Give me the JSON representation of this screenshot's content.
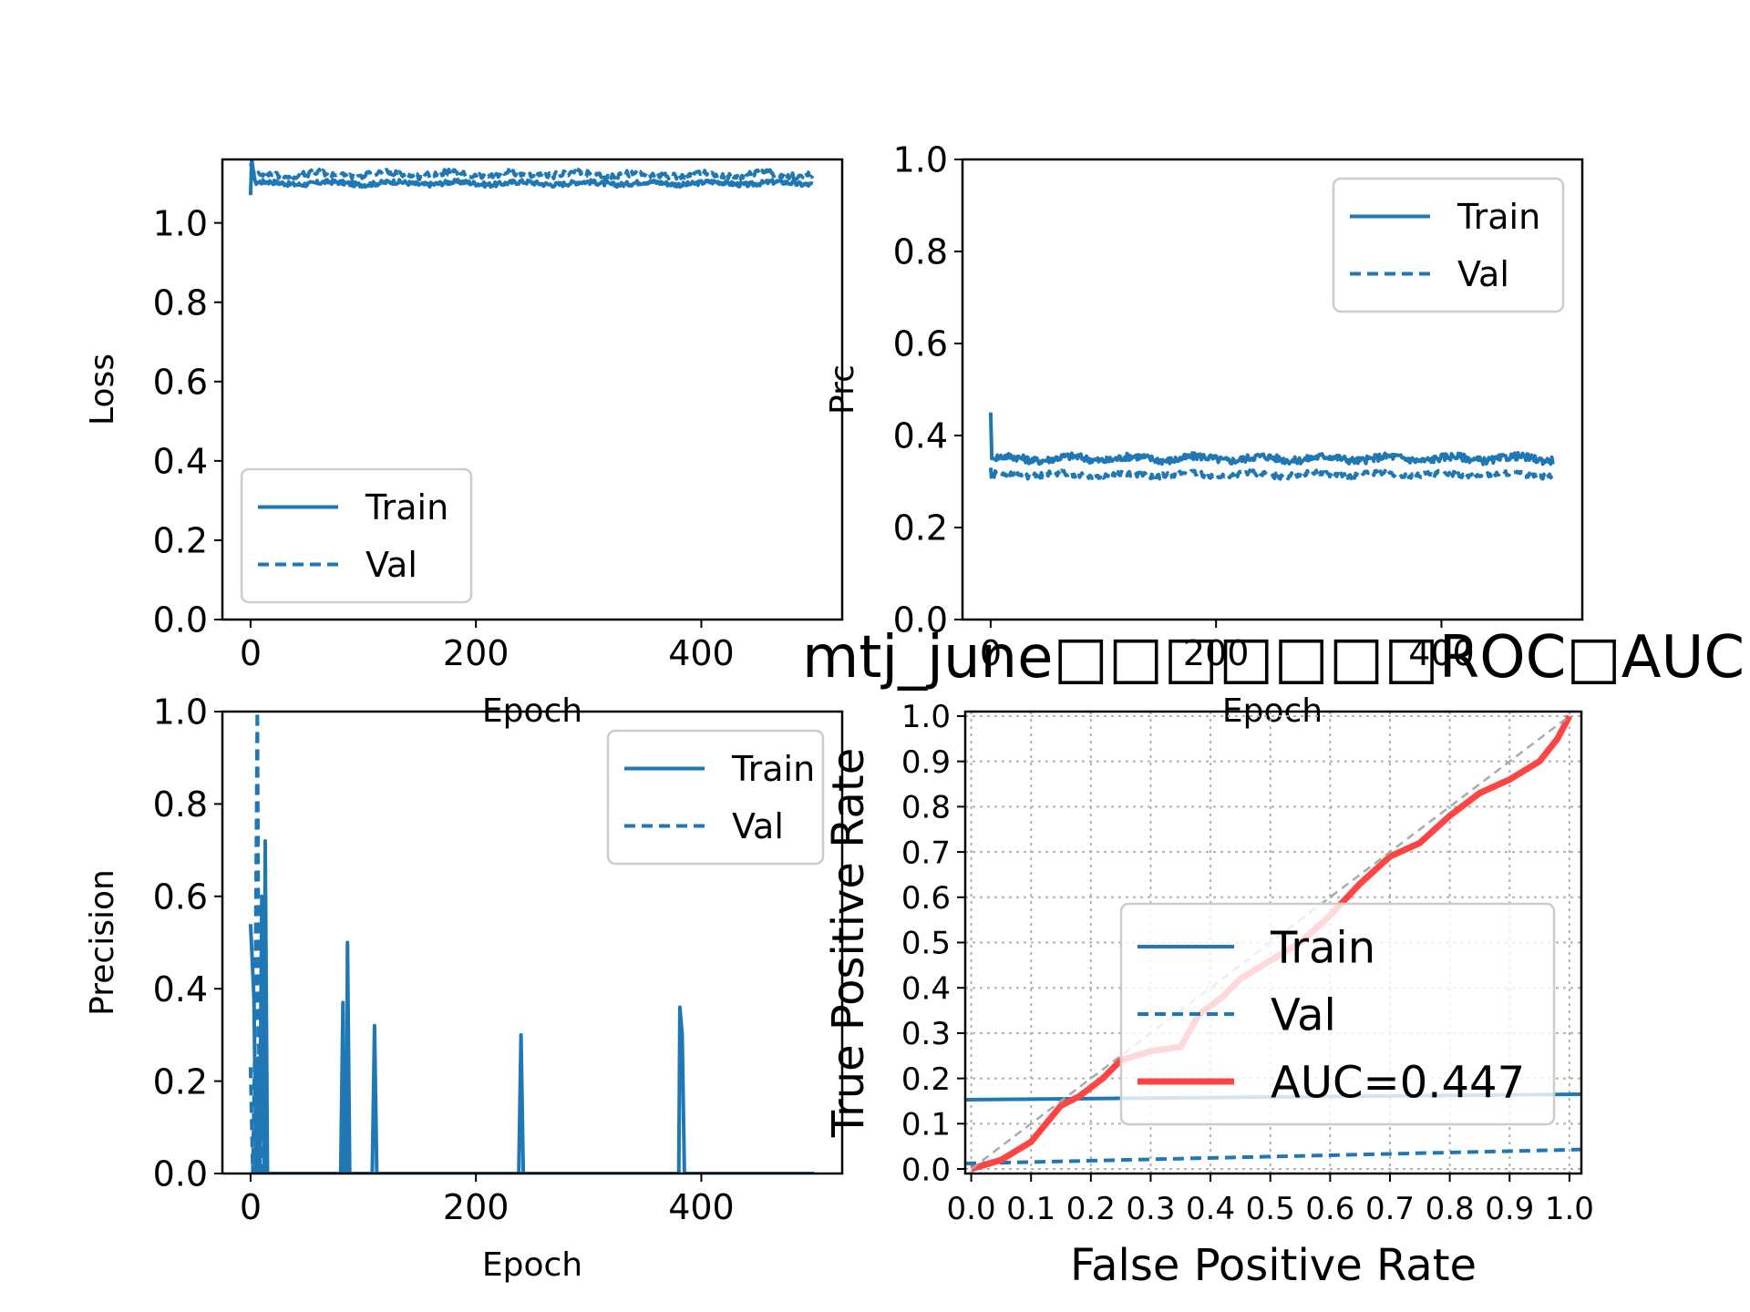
{
  "colors": {
    "train": "#1f77b4",
    "val": "#1f77b4",
    "roc": "#ff4444",
    "diagonal": "#aaaaaa",
    "grid": "#b0b0b0",
    "legend_border": "#cccccc"
  },
  "chart_data": [
    {
      "type": "line",
      "ylabel": "Loss",
      "xlabel": "Epoch",
      "xlim": [
        -25,
        525
      ],
      "ylim": [
        0,
        1.16
      ],
      "xticks": [
        0,
        200,
        400
      ],
      "yticks": [
        0.0,
        0.2,
        0.4,
        0.6,
        0.8,
        1.0
      ],
      "legend_position": "lower-left",
      "series": [
        {
          "name": "Train",
          "style": "solid",
          "base": 1.1,
          "start": 1.07,
          "spike": 1.16,
          "noise": 0.006,
          "n": 500
        },
        {
          "name": "Val",
          "style": "dashed",
          "base": 1.122,
          "start": 1.15,
          "spike": 1.14,
          "noise": 0.008,
          "n": 500
        }
      ]
    },
    {
      "type": "line",
      "ylabel": "Prc",
      "xlabel": "Epoch",
      "xlim": [
        -25,
        525
      ],
      "ylim": [
        0,
        1.0
      ],
      "xticks": [
        0,
        200,
        400
      ],
      "yticks": [
        0.0,
        0.2,
        0.4,
        0.6,
        0.8,
        1.0
      ],
      "legend_position": "upper-right",
      "series": [
        {
          "name": "Train",
          "style": "solid",
          "base": 0.35,
          "start": 0.45,
          "spike": 0.35,
          "noise": 0.008,
          "n": 500
        },
        {
          "name": "Val",
          "style": "dashed",
          "base": 0.315,
          "start": 0.33,
          "spike": 0.3,
          "noise": 0.006,
          "n": 500
        }
      ]
    },
    {
      "type": "line",
      "ylabel": "Precision",
      "xlabel": "Epoch",
      "xlim": [
        -25,
        525
      ],
      "ylim": [
        0,
        1.0
      ],
      "xticks": [
        0,
        200,
        400
      ],
      "yticks": [
        0.0,
        0.2,
        0.4,
        0.6,
        0.8,
        1.0
      ],
      "legend_position": "upper-right",
      "series": [
        {
          "name": "Train",
          "style": "solid",
          "points": [
            [
              0,
              0.54
            ],
            [
              3,
              0.38
            ],
            [
              5,
              0.0
            ],
            [
              7,
              0.25
            ],
            [
              8,
              0.0
            ],
            [
              10,
              0.5
            ],
            [
              12,
              0.0
            ],
            [
              13,
              0.72
            ],
            [
              15,
              0.0
            ],
            [
              80,
              0.0
            ],
            [
              82,
              0.37
            ],
            [
              83,
              0.0
            ],
            [
              85,
              0.0
            ],
            [
              86,
              0.5
            ],
            [
              88,
              0.0
            ],
            [
              108,
              0.0
            ],
            [
              110,
              0.32
            ],
            [
              112,
              0.0
            ],
            [
              238,
              0.0
            ],
            [
              240,
              0.3
            ],
            [
              242,
              0.0
            ],
            [
              380,
              0.0
            ],
            [
              381,
              0.36
            ],
            [
              383,
              0.3
            ],
            [
              385,
              0.0
            ],
            [
              500,
              0.0
            ]
          ]
        },
        {
          "name": "Val",
          "style": "dashed",
          "points": [
            [
              0,
              0.23
            ],
            [
              2,
              0.0
            ],
            [
              4,
              0.3
            ],
            [
              6,
              1.0
            ],
            [
              8,
              0.0
            ],
            [
              10,
              0.6
            ],
            [
              11,
              0.0
            ],
            [
              14,
              0.0
            ],
            [
              500,
              0.0
            ]
          ]
        }
      ]
    },
    {
      "type": "line",
      "title": "mtj_june□□□□□□□ROC□AUC",
      "xlabel": "False Positive Rate",
      "ylabel": "True Positive Rate",
      "xlim": [
        -0.01,
        1.02
      ],
      "ylim": [
        -0.01,
        1.01
      ],
      "xticks": [
        0.0,
        0.1,
        0.2,
        0.3,
        0.4,
        0.5,
        0.6,
        0.7,
        0.8,
        0.9,
        1.0
      ],
      "xtick_labels": [
        "0.0",
        "0.1",
        "0.2",
        "0.3",
        "0.4",
        "0.5",
        "0.6",
        "0.7",
        "0.8",
        "0.9",
        "1.0"
      ],
      "yticks": [
        0.0,
        0.1,
        0.2,
        0.3,
        0.4,
        0.5,
        0.6,
        0.7,
        0.8,
        0.9,
        1.0
      ],
      "grid": true,
      "legend_position": "lower-right",
      "series": [
        {
          "name": "Train",
          "style": "solid",
          "points": [
            [
              -0.01,
              0.153
            ],
            [
              1.02,
              0.165
            ]
          ]
        },
        {
          "name": "Val",
          "style": "dashed",
          "points": [
            [
              -0.01,
              0.012
            ],
            [
              1.02,
              0.043
            ]
          ]
        },
        {
          "name": "AUC=0.447",
          "style": "solid-red",
          "points": [
            [
              0.0,
              0.0
            ],
            [
              0.05,
              0.02
            ],
            [
              0.1,
              0.06
            ],
            [
              0.15,
              0.14
            ],
            [
              0.18,
              0.16
            ],
            [
              0.22,
              0.2
            ],
            [
              0.25,
              0.24
            ],
            [
              0.3,
              0.26
            ],
            [
              0.35,
              0.27
            ],
            [
              0.38,
              0.34
            ],
            [
              0.42,
              0.38
            ],
            [
              0.45,
              0.42
            ],
            [
              0.5,
              0.46
            ],
            [
              0.55,
              0.5
            ],
            [
              0.6,
              0.56
            ],
            [
              0.65,
              0.63
            ],
            [
              0.7,
              0.69
            ],
            [
              0.75,
              0.72
            ],
            [
              0.8,
              0.78
            ],
            [
              0.85,
              0.83
            ],
            [
              0.9,
              0.86
            ],
            [
              0.95,
              0.9
            ],
            [
              0.98,
              0.95
            ],
            [
              1.0,
              1.0
            ]
          ]
        },
        {
          "name": "",
          "style": "diagonal",
          "points": [
            [
              0,
              0
            ],
            [
              1,
              1
            ]
          ]
        }
      ]
    }
  ]
}
